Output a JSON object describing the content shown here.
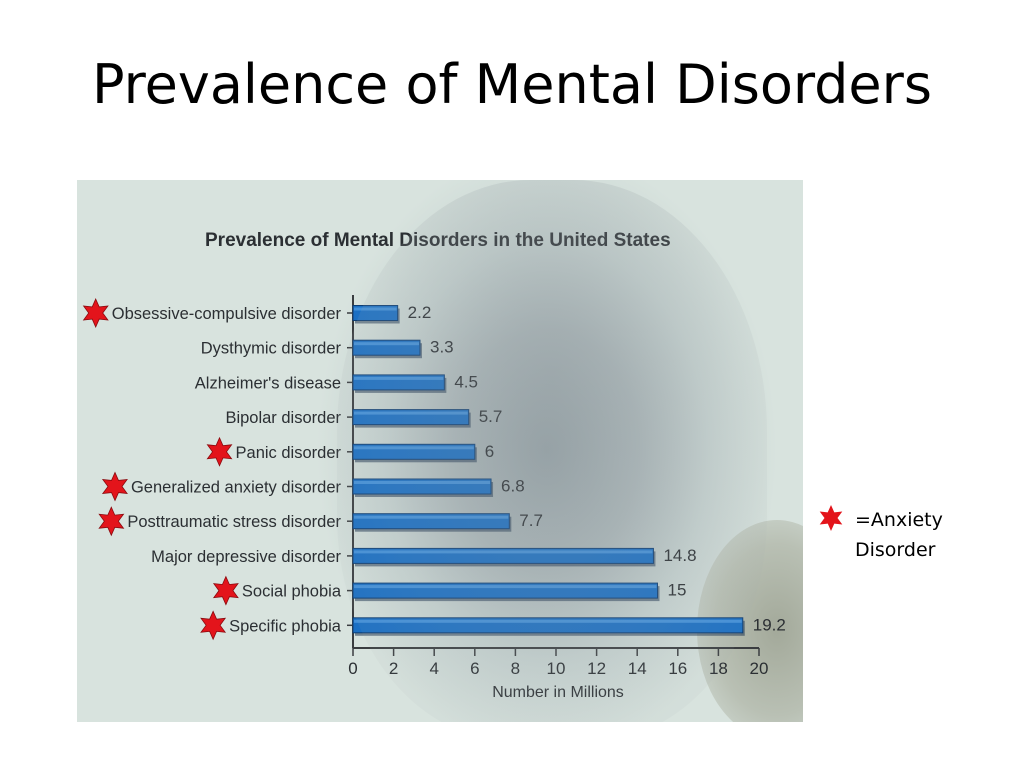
{
  "slide": {
    "title": "Prevalence of Mental Disorders"
  },
  "legend": {
    "text": "=Anxiety\nDisorder",
    "star_color": "#e3141b"
  },
  "chart_data": {
    "type": "bar",
    "orientation": "horizontal",
    "title": "Prevalence of Mental Disorders in the United States",
    "xlabel": "Number in Millions",
    "ylabel": "",
    "xlim": [
      0,
      20
    ],
    "xticks": [
      0,
      2,
      4,
      6,
      8,
      10,
      12,
      14,
      16,
      18,
      20
    ],
    "grid": false,
    "bar_color": "#1a6fc4",
    "categories": [
      "Obsessive-compulsive disorder",
      "Dysthymic disorder",
      "Alzheimer's disease",
      "Bipolar disorder",
      "Panic disorder",
      "Generalized anxiety disorder",
      "Posttraumatic stress disorder",
      "Major depressive disorder",
      "Social phobia",
      "Specific phobia"
    ],
    "values": [
      2.2,
      3.3,
      4.5,
      5.7,
      6,
      6.8,
      7.7,
      14.8,
      15,
      19.2
    ],
    "value_labels": [
      "2.2",
      "3.3",
      "4.5",
      "5.7",
      "6",
      "6.8",
      "7.7",
      "14.8",
      "15",
      "19.2"
    ],
    "anxiety_marked": [
      true,
      false,
      false,
      false,
      true,
      true,
      true,
      false,
      true,
      true
    ]
  }
}
